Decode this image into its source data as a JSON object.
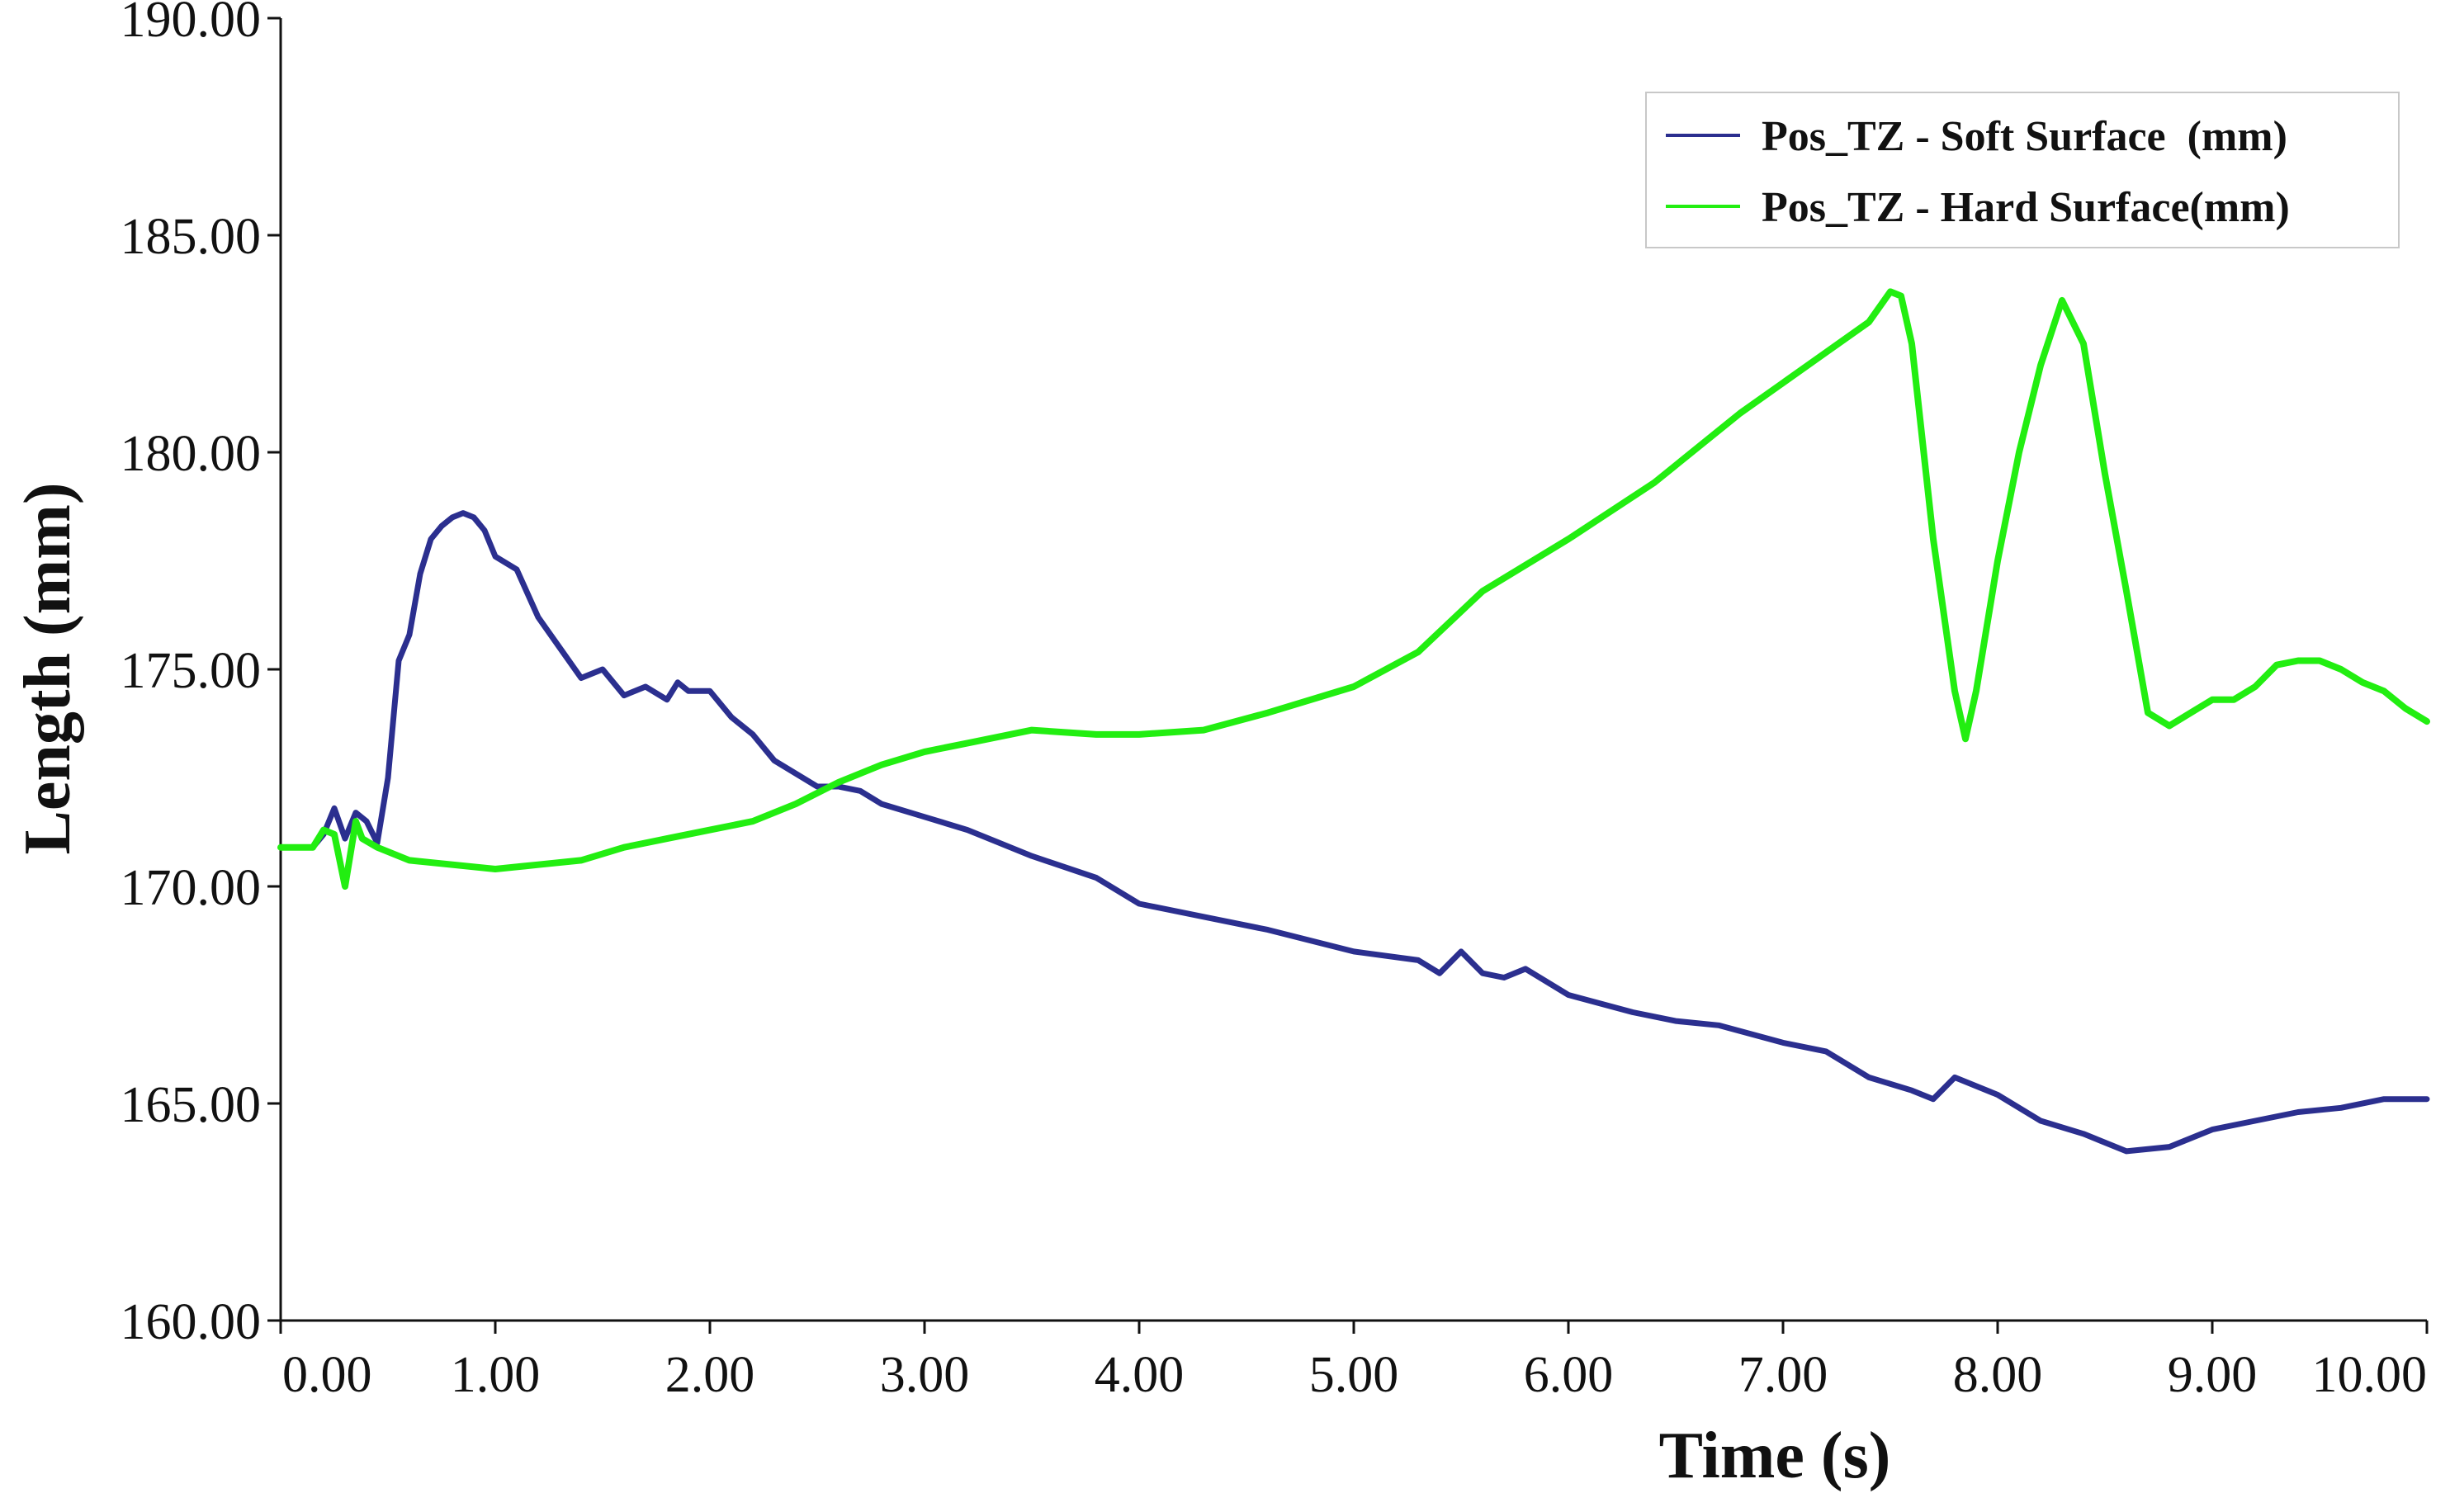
{
  "chart_data": {
    "type": "line",
    "title": "",
    "xlabel": "Time (s)",
    "ylabel": "Length (mm)",
    "xlim": [
      0,
      10
    ],
    "ylim": [
      160,
      190
    ],
    "grid": false,
    "legend_position": "top-right",
    "x_ticks": [
      0,
      1,
      2,
      3,
      4,
      5,
      6,
      7,
      8,
      9,
      10
    ],
    "x_tick_labels": [
      "0.00",
      "1.00",
      "2.00",
      "3.00",
      "4.00",
      "5.00",
      "6.00",
      "7.00",
      "8.00",
      "9.00",
      "10.00"
    ],
    "y_ticks": [
      160,
      165,
      170,
      175,
      180,
      185,
      190
    ],
    "y_tick_labels": [
      "160.00",
      "165.00",
      "170.00",
      "175.00",
      "180.00",
      "185.00",
      "190.00"
    ],
    "series": [
      {
        "name": "Pos_TZ - Soft Surface  (mm)",
        "color": "#2b2f8f",
        "x": [
          0,
          0.15,
          0.2,
          0.25,
          0.3,
          0.35,
          0.4,
          0.45,
          0.5,
          0.55,
          0.6,
          0.65,
          0.7,
          0.75,
          0.8,
          0.85,
          0.9,
          0.95,
          1.0,
          1.1,
          1.2,
          1.3,
          1.4,
          1.5,
          1.6,
          1.7,
          1.8,
          1.85,
          1.9,
          2.0,
          2.1,
          2.2,
          2.3,
          2.4,
          2.5,
          2.6,
          2.7,
          2.8,
          3.0,
          3.2,
          3.5,
          3.8,
          4.0,
          4.3,
          4.6,
          5.0,
          5.3,
          5.4,
          5.5,
          5.6,
          5.7,
          5.8,
          6.0,
          6.3,
          6.5,
          6.7,
          7.0,
          7.2,
          7.4,
          7.6,
          7.7,
          7.8,
          8.0,
          8.2,
          8.4,
          8.6,
          8.8,
          9.0,
          9.2,
          9.4,
          9.6,
          9.8,
          10.0
        ],
        "y": [
          170.9,
          170.9,
          171.2,
          171.8,
          171.1,
          171.7,
          171.5,
          171.0,
          172.5,
          175.2,
          175.8,
          177.2,
          178.0,
          178.3,
          178.5,
          178.6,
          178.5,
          178.2,
          177.6,
          177.3,
          176.2,
          175.5,
          174.8,
          175.0,
          174.4,
          174.6,
          174.3,
          174.7,
          174.5,
          174.5,
          173.9,
          173.5,
          172.9,
          172.6,
          172.3,
          172.3,
          172.2,
          171.9,
          171.6,
          171.3,
          170.7,
          170.2,
          169.6,
          169.3,
          169.0,
          168.5,
          168.3,
          168.0,
          168.5,
          168.0,
          167.9,
          168.1,
          167.5,
          167.1,
          166.9,
          166.8,
          166.4,
          166.2,
          165.6,
          165.3,
          165.1,
          165.6,
          165.2,
          164.6,
          164.3,
          163.9,
          164.0,
          164.4,
          164.6,
          164.8,
          164.9,
          165.1,
          165.1
        ]
      },
      {
        "name": "Pos_TZ - Hard Surface(mm)",
        "color": "#22ee11",
        "x": [
          0,
          0.15,
          0.2,
          0.25,
          0.3,
          0.35,
          0.38,
          0.45,
          0.6,
          0.8,
          1.0,
          1.2,
          1.4,
          1.6,
          1.8,
          2.0,
          2.2,
          2.4,
          2.6,
          2.8,
          3.0,
          3.2,
          3.5,
          3.8,
          4.0,
          4.3,
          4.6,
          5.0,
          5.3,
          5.6,
          6.0,
          6.4,
          6.8,
          7.2,
          7.4,
          7.5,
          7.55,
          7.6,
          7.7,
          7.8,
          7.85,
          7.9,
          8.0,
          8.1,
          8.2,
          8.3,
          8.4,
          8.5,
          8.6,
          8.7,
          8.8,
          8.9,
          9.0,
          9.1,
          9.2,
          9.3,
          9.4,
          9.5,
          9.6,
          9.7,
          9.8,
          9.9,
          10.0
        ],
        "y": [
          170.9,
          170.9,
          171.3,
          171.2,
          170.0,
          171.5,
          171.1,
          170.9,
          170.6,
          170.5,
          170.4,
          170.5,
          170.6,
          170.9,
          171.1,
          171.3,
          171.5,
          171.9,
          172.4,
          172.8,
          173.1,
          173.3,
          173.6,
          173.5,
          173.5,
          173.6,
          174.0,
          174.6,
          175.4,
          176.8,
          178.0,
          179.3,
          180.9,
          182.3,
          183.0,
          183.7,
          183.6,
          182.5,
          178.0,
          174.5,
          173.4,
          174.5,
          177.5,
          180.0,
          182.0,
          183.5,
          182.5,
          179.5,
          176.8,
          174.0,
          173.7,
          174.0,
          174.3,
          174.3,
          174.6,
          175.1,
          175.2,
          175.2,
          175.0,
          174.7,
          174.5,
          174.1,
          173.8
        ]
      }
    ]
  }
}
